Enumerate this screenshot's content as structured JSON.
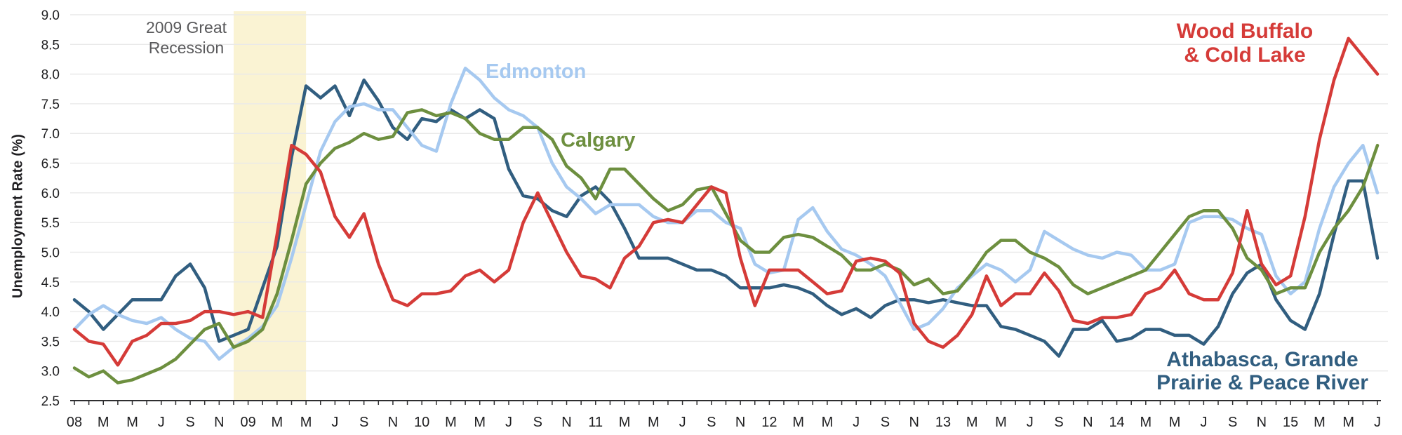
{
  "chart_data": {
    "type": "line",
    "title": "",
    "xlabel": "",
    "ylabel": "Unemployment Rate (%)",
    "x_period": {
      "start": "2008-01",
      "end": "2015-07",
      "step": "month",
      "n_points": 91
    },
    "ylim": [
      2.5,
      9.0
    ],
    "y_tick_step": 0.5,
    "y_ticks": [
      2.5,
      3.0,
      3.5,
      4.0,
      4.5,
      5.0,
      5.5,
      6.0,
      6.5,
      7.0,
      7.5,
      8.0,
      8.5,
      9.0
    ],
    "grid": "horizontal-on",
    "legend_position": "direct-line-labels",
    "x_tick_labels": [
      [
        0,
        "08"
      ],
      [
        2,
        "M"
      ],
      [
        4,
        "M"
      ],
      [
        6,
        "J"
      ],
      [
        8,
        "S"
      ],
      [
        10,
        "N"
      ],
      [
        12,
        "09"
      ],
      [
        14,
        "M"
      ],
      [
        16,
        "M"
      ],
      [
        18,
        "J"
      ],
      [
        20,
        "S"
      ],
      [
        22,
        "N"
      ],
      [
        24,
        "10"
      ],
      [
        26,
        "M"
      ],
      [
        28,
        "M"
      ],
      [
        30,
        "J"
      ],
      [
        32,
        "S"
      ],
      [
        34,
        "N"
      ],
      [
        36,
        "11"
      ],
      [
        38,
        "M"
      ],
      [
        40,
        "M"
      ],
      [
        42,
        "J"
      ],
      [
        44,
        "S"
      ],
      [
        46,
        "N"
      ],
      [
        48,
        "12"
      ],
      [
        50,
        "M"
      ],
      [
        52,
        "M"
      ],
      [
        54,
        "J"
      ],
      [
        56,
        "S"
      ],
      [
        58,
        "N"
      ],
      [
        60,
        "13"
      ],
      [
        62,
        "M"
      ],
      [
        64,
        "M"
      ],
      [
        66,
        "J"
      ],
      [
        68,
        "S"
      ],
      [
        70,
        "N"
      ],
      [
        72,
        "14"
      ],
      [
        74,
        "M"
      ],
      [
        76,
        "M"
      ],
      [
        78,
        "J"
      ],
      [
        80,
        "S"
      ],
      [
        82,
        "N"
      ],
      [
        84,
        "15"
      ],
      [
        86,
        "M"
      ],
      [
        88,
        "M"
      ],
      [
        90,
        "J"
      ]
    ],
    "annotations": {
      "recession_band": {
        "label_lines": [
          "2009 Great",
          "Recession"
        ],
        "from_month_index": 11,
        "to_month_index": 16,
        "band_color": "#faf3d3",
        "text_color": "#59595b"
      }
    },
    "series": [
      {
        "id": "edmonton",
        "name": "Edmonton",
        "color": "#a6c9f0",
        "values": [
          3.7,
          3.95,
          4.1,
          3.95,
          3.85,
          3.8,
          3.9,
          3.7,
          3.55,
          3.5,
          3.2,
          3.4,
          3.55,
          3.75,
          4.1,
          4.9,
          5.8,
          6.7,
          7.2,
          7.45,
          7.5,
          7.4,
          7.4,
          7.1,
          6.8,
          6.7,
          7.5,
          8.1,
          7.9,
          7.6,
          7.4,
          7.3,
          7.1,
          6.5,
          6.1,
          5.9,
          5.65,
          5.8,
          5.8,
          5.8,
          5.6,
          5.5,
          5.5,
          5.7,
          5.7,
          5.5,
          5.4,
          4.8,
          4.65,
          4.7,
          5.55,
          5.75,
          5.35,
          5.05,
          4.95,
          4.8,
          4.6,
          4.15,
          3.7,
          3.8,
          4.05,
          4.4,
          4.6,
          4.8,
          4.7,
          4.5,
          4.7,
          5.35,
          5.2,
          5.05,
          4.95,
          4.9,
          5.0,
          4.95,
          4.7,
          4.7,
          4.8,
          5.5,
          5.6,
          5.6,
          5.55,
          5.4,
          5.3,
          4.6,
          4.3,
          4.5,
          5.4,
          6.1,
          6.5,
          6.8,
          6.0
        ]
      },
      {
        "id": "calgary",
        "name": "Calgary",
        "color": "#6d8f3f",
        "values": [
          3.05,
          2.9,
          3.0,
          2.8,
          2.85,
          2.95,
          3.05,
          3.2,
          3.45,
          3.7,
          3.8,
          3.4,
          3.5,
          3.7,
          4.3,
          5.2,
          6.15,
          6.5,
          6.75,
          6.85,
          7.0,
          6.9,
          6.95,
          7.35,
          7.4,
          7.3,
          7.35,
          7.25,
          7.0,
          6.9,
          6.9,
          7.1,
          7.1,
          6.9,
          6.45,
          6.25,
          5.9,
          6.4,
          6.4,
          6.15,
          5.9,
          5.7,
          5.8,
          6.05,
          6.1,
          5.65,
          5.2,
          5.0,
          5.0,
          5.25,
          5.3,
          5.25,
          5.1,
          4.95,
          4.7,
          4.7,
          4.8,
          4.7,
          4.45,
          4.55,
          4.3,
          4.35,
          4.65,
          5.0,
          5.2,
          5.2,
          5.0,
          4.9,
          4.75,
          4.45,
          4.3,
          4.4,
          4.5,
          4.6,
          4.7,
          5.0,
          5.3,
          5.6,
          5.7,
          5.7,
          5.4,
          4.9,
          4.7,
          4.3,
          4.4,
          4.4,
          5.0,
          5.4,
          5.7,
          6.1,
          6.8
        ]
      },
      {
        "id": "wood_buffalo",
        "name": "Wood Buffalo & Cold Lake",
        "label_lines": [
          "Wood Buffalo",
          "& Cold Lake"
        ],
        "color": "#d53b38",
        "values": [
          3.7,
          3.5,
          3.45,
          3.1,
          3.5,
          3.6,
          3.8,
          3.8,
          3.85,
          4.0,
          4.0,
          3.95,
          4.0,
          3.9,
          5.3,
          6.8,
          6.65,
          6.35,
          5.6,
          5.25,
          5.65,
          4.8,
          4.2,
          4.1,
          4.3,
          4.3,
          4.35,
          4.6,
          4.7,
          4.5,
          4.7,
          5.5,
          6.0,
          5.5,
          5.0,
          4.6,
          4.55,
          4.4,
          4.9,
          5.1,
          5.5,
          5.55,
          5.5,
          5.8,
          6.1,
          6.0,
          4.9,
          4.1,
          4.7,
          4.7,
          4.7,
          4.5,
          4.3,
          4.35,
          4.85,
          4.9,
          4.85,
          4.65,
          3.8,
          3.5,
          3.4,
          3.6,
          3.95,
          4.6,
          4.1,
          4.3,
          4.3,
          4.65,
          4.35,
          3.85,
          3.8,
          3.9,
          3.9,
          3.95,
          4.3,
          4.4,
          4.7,
          4.3,
          4.2,
          4.2,
          4.65,
          5.7,
          4.8,
          4.45,
          4.6,
          5.6,
          6.9,
          7.9,
          8.6,
          8.3,
          8.0
        ]
      },
      {
        "id": "athabasca",
        "name": "Athabasca, Grande Prairie & Peace River",
        "label_lines": [
          "Athabasca, Grande",
          "Prairie & Peace River"
        ],
        "color": "#315e80",
        "values": [
          4.2,
          4.0,
          3.7,
          3.95,
          4.2,
          4.2,
          4.2,
          4.6,
          4.8,
          4.4,
          3.5,
          3.6,
          3.7,
          4.4,
          5.1,
          6.6,
          7.8,
          7.6,
          7.8,
          7.3,
          7.9,
          7.55,
          7.1,
          6.9,
          7.25,
          7.2,
          7.4,
          7.25,
          7.4,
          7.25,
          6.4,
          5.95,
          5.9,
          5.7,
          5.6,
          5.95,
          6.1,
          5.85,
          5.4,
          4.9,
          4.9,
          4.9,
          4.8,
          4.7,
          4.7,
          4.6,
          4.4,
          4.4,
          4.4,
          4.45,
          4.4,
          4.3,
          4.1,
          3.95,
          4.05,
          3.9,
          4.1,
          4.2,
          4.2,
          4.15,
          4.2,
          4.15,
          4.1,
          4.1,
          3.75,
          3.7,
          3.6,
          3.5,
          3.25,
          3.7,
          3.7,
          3.85,
          3.5,
          3.55,
          3.7,
          3.7,
          3.6,
          3.6,
          3.45,
          3.75,
          4.3,
          4.65,
          4.8,
          4.2,
          3.85,
          3.7,
          4.3,
          5.3,
          6.2,
          6.2,
          4.9
        ]
      }
    ],
    "axis_style": {
      "axis_color": "#2e2e30",
      "grid_color": "#e9e9e9",
      "tick_label_color": "#1f1f21"
    }
  }
}
